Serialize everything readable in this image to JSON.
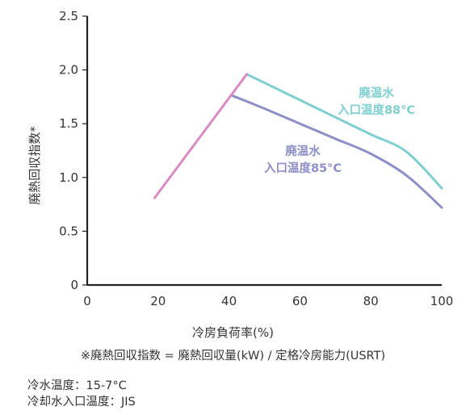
{
  "chart_data": {
    "type": "line",
    "xlabel": "冷房負荷率(%)",
    "ylabel": "廃熱回収指数*",
    "xlim": [
      0,
      100
    ],
    "ylim": [
      0,
      2.5
    ],
    "x_ticks": [
      "0",
      "20",
      "40",
      "60",
      "80",
      "100"
    ],
    "y_ticks": [
      "0",
      "0.5",
      "1.0",
      "1.5",
      "2.0",
      "2.5"
    ],
    "grid": false,
    "series": [
      {
        "name_lines": [
          "廃温水",
          "入口温度88°C"
        ],
        "color": "#7fcfcf",
        "x": [
          45,
          50,
          60,
          70,
          80,
          90,
          100
        ],
        "y": [
          1.96,
          1.88,
          1.72,
          1.56,
          1.4,
          1.24,
          0.9
        ]
      },
      {
        "name_lines": [
          "廃温水",
          "入口温度85°C"
        ],
        "color": "#8f8fc8",
        "x": [
          41,
          50,
          60,
          70,
          80,
          90,
          100
        ],
        "y": [
          1.76,
          1.64,
          1.5,
          1.36,
          1.22,
          1.02,
          0.72
        ]
      },
      {
        "color": "#d98bbf",
        "x": [
          19,
          45
        ],
        "y": [
          0.81,
          1.96
        ]
      }
    ]
  },
  "footnote": "※廃熱回収指数 = 廃熱回収量(kW) / 定格冷房能力(USRT)",
  "conditions": [
    "冷水温度：15-7°C",
    "冷却水入口温度：JIS"
  ]
}
